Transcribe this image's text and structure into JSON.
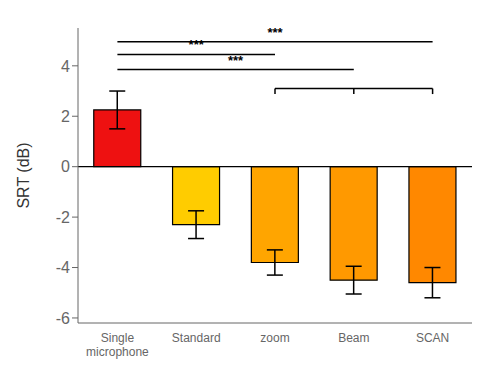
{
  "chart_data": {
    "type": "bar",
    "categories": [
      "Single\nmicrophone",
      "Standard",
      "zoom",
      "Beam",
      "SCAN"
    ],
    "values": [
      2.25,
      -2.3,
      -3.8,
      -4.5,
      -4.6
    ],
    "errors": [
      0.75,
      0.55,
      0.5,
      0.55,
      0.6
    ],
    "colors": [
      "#ee1111",
      "#ffcc00",
      "#ffa500",
      "#ff9900",
      "#ff8800"
    ],
    "ylabel": "SRT (dB)",
    "ylim": [
      -6.2,
      5.5
    ],
    "yticks": [
      -6,
      -4,
      -2,
      0,
      2,
      4
    ],
    "annotations": [
      {
        "label": "***",
        "from": "Single\nmicrophone",
        "to": "zoom",
        "y": 4.45
      },
      {
        "label": "***",
        "from": "Single\nmicrophone",
        "to": "Beam",
        "y": 3.85
      },
      {
        "label": "***",
        "from": "Single\nmicrophone",
        "to": "SCAN",
        "y": 4.95
      },
      {
        "from": "zoom",
        "to": "SCAN",
        "y": 3.1,
        "drop": 0.22
      }
    ]
  }
}
